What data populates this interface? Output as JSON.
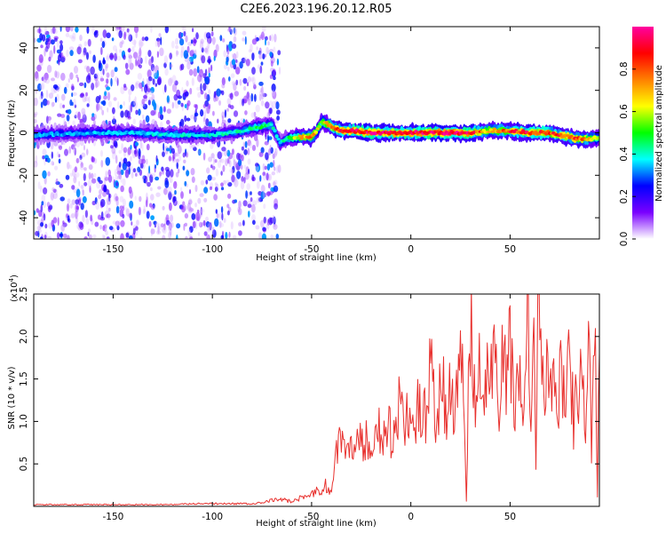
{
  "title": "C2E6.2023.196.20.12.R05",
  "chart_data": [
    {
      "type": "heatmap",
      "xlabel": "Height of straight line (km)",
      "ylabel": "Frequency (Hz)",
      "xlim": [
        -190,
        95
      ],
      "ylim": [
        -50,
        50
      ],
      "xticks": [
        -150,
        -100,
        -50,
        0,
        50
      ],
      "yticks": [
        -40,
        -20,
        0,
        20,
        40
      ],
      "colorbar": {
        "label": "Normalized spectral amplitude",
        "range": [
          0,
          1
        ],
        "ticks": [
          "0.0",
          "0.2",
          "0.4",
          "0.6",
          "0.8"
        ],
        "colors": [
          "#ffffff",
          "#7a00ff",
          "#0000ff",
          "#00ffff",
          "#00ff00",
          "#ffff00",
          "#ff8000",
          "#ff0000",
          "#ff00a0"
        ]
      },
      "ridge": {
        "x": [
          -190,
          -160,
          -140,
          -120,
          -100,
          -90,
          -80,
          -75,
          -70,
          -66,
          -63,
          -58,
          -55,
          -50,
          -48,
          -45,
          -42,
          -38,
          -35,
          -30,
          -20,
          -10,
          0,
          10,
          20,
          30,
          40,
          50,
          60,
          70,
          80,
          85,
          90,
          95
        ],
        "freq": [
          -1,
          0,
          0,
          -1,
          -1,
          0,
          2,
          3,
          4,
          -5,
          -3,
          -2,
          -2,
          -2,
          0,
          5,
          4,
          2,
          1,
          1,
          0,
          0,
          0,
          0,
          0,
          0,
          1,
          1,
          0,
          0,
          -2,
          -3,
          -3,
          -2
        ],
        "amplitude": [
          0.35,
          0.35,
          0.35,
          0.4,
          0.4,
          0.4,
          0.45,
          0.5,
          0.45,
          0.35,
          0.45,
          0.6,
          0.7,
          0.75,
          0.7,
          0.6,
          0.75,
          0.85,
          0.9,
          0.95,
          0.95,
          0.9,
          0.95,
          0.95,
          1.0,
          0.95,
          0.65,
          0.85,
          0.9,
          0.85,
          0.85,
          0.8,
          0.75,
          0.6
        ]
      }
    },
    {
      "type": "line",
      "xlabel": "Height of straight line (km)",
      "ylabel": "SNR (10 * v/v)",
      "yscale_label": "(x10",
      "yscale_exp": "4",
      "yscale_close": ")",
      "xlim": [
        -190,
        95
      ],
      "ylim": [
        0,
        2.5
      ],
      "xticks": [
        -150,
        -100,
        -50,
        0,
        50
      ],
      "yticks": [
        "0.5",
        "1.0",
        "1.5",
        "2.0",
        "2.5"
      ],
      "series": [
        {
          "color": "#e8312e",
          "x": [
            -190,
            -180,
            -170,
            -160,
            -150,
            -140,
            -130,
            -120,
            -110,
            -100,
            -90,
            -80,
            -75,
            -70,
            -65,
            -60,
            -55,
            -50,
            -47,
            -45,
            -43,
            -40,
            -38,
            -36,
            -34,
            -32,
            -30,
            -28,
            -26,
            -24,
            -22,
            -20,
            -18,
            -16,
            -14,
            -12,
            -10,
            -8,
            -6,
            -4,
            -2,
            0,
            2,
            4,
            6,
            8,
            10,
            12,
            14,
            16,
            18,
            20,
            22,
            24,
            26,
            27,
            28,
            29,
            30,
            32,
            34,
            36,
            38,
            40,
            42,
            44,
            46,
            48,
            50,
            52,
            54,
            56,
            58,
            59,
            60,
            62,
            63,
            64,
            66,
            68,
            70,
            72,
            74,
            76,
            78,
            80,
            82,
            83,
            84,
            86,
            88,
            90,
            91,
            92,
            93,
            94,
            95
          ],
          "y": [
            0.02,
            0.02,
            0.02,
            0.02,
            0.02,
            0.02,
            0.02,
            0.02,
            0.03,
            0.03,
            0.03,
            0.03,
            0.04,
            0.07,
            0.08,
            0.06,
            0.1,
            0.15,
            0.2,
            0.12,
            0.25,
            0.18,
            0.55,
            0.7,
            0.9,
            0.6,
            0.75,
            0.5,
            0.85,
            0.7,
            0.8,
            0.65,
            0.95,
            0.9,
            0.7,
            1.0,
            0.85,
            0.75,
            1.2,
            0.95,
            1.05,
            1.1,
            0.85,
            1.3,
            1.0,
            1.15,
            1.6,
            1.1,
            1.2,
            1.45,
            1.0,
            1.35,
            1.2,
            1.5,
            1.9,
            1.1,
            0.05,
            1.3,
            2.15,
            1.3,
            1.7,
            1.0,
            1.55,
            1.35,
            1.8,
            1.25,
            1.65,
            1.45,
            1.95,
            1.1,
            1.7,
            1.3,
            1.6,
            2.5,
            1.2,
            1.75,
            0.4,
            2.45,
            1.3,
            1.65,
            1.1,
            1.85,
            1.2,
            1.55,
            1.4,
            2.0,
            0.9,
            1.6,
            1.2,
            1.8,
            0.8,
            2.15,
            0.7,
            1.4,
            1.9,
            0.15,
            1.8
          ]
        }
      ]
    }
  ]
}
